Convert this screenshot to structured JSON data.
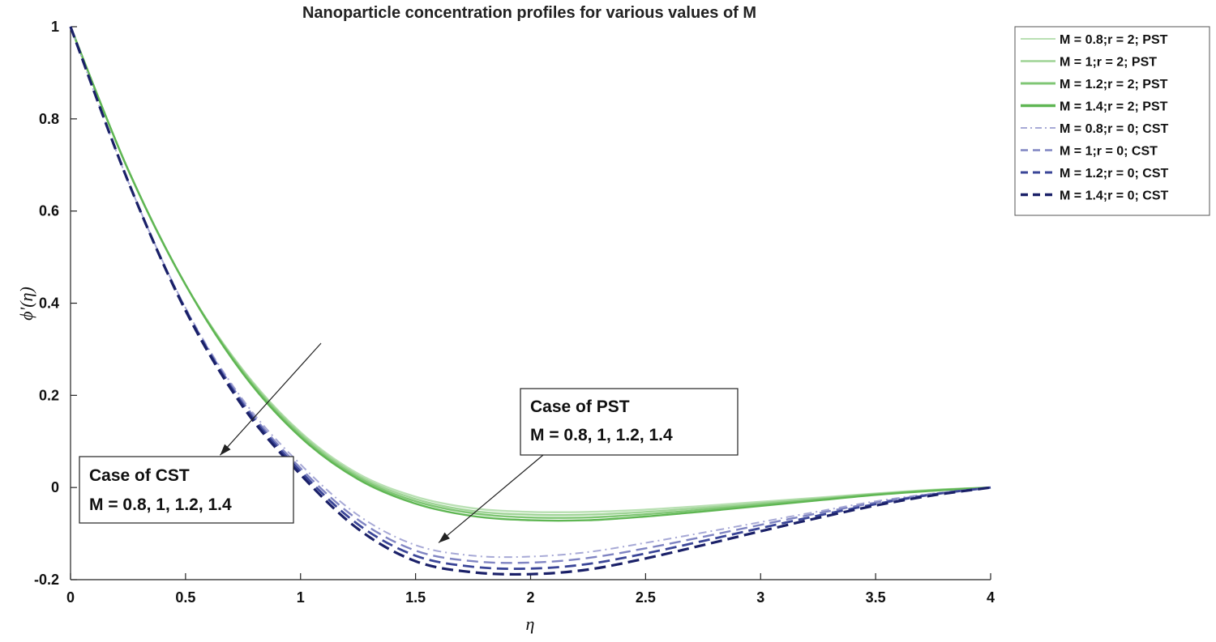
{
  "chart_data": {
    "type": "line",
    "title": "Nanoparticle concentration profiles for various values of M",
    "xlabel": "η",
    "ylabel": "ϕ'(η)",
    "xlim": [
      0,
      4
    ],
    "ylim": [
      -0.2,
      1
    ],
    "xticks": [
      "0",
      "0.5",
      "1",
      "1.5",
      "2",
      "2.5",
      "3",
      "3.5",
      "4"
    ],
    "yticks": [
      "-0.2",
      "0",
      "0.2",
      "0.4",
      "0.6",
      "0.8",
      "1"
    ],
    "grid": false,
    "legend_position": "outside-top-right",
    "series": [
      {
        "name": "M = 0.8;r = 2; PST",
        "color": "#b9e0b3",
        "style": "solid",
        "x": [
          0,
          0.25,
          0.5,
          0.75,
          1.0,
          1.25,
          1.5,
          1.75,
          2.0,
          2.25,
          2.5,
          2.75,
          3.0,
          3.25,
          3.5,
          3.75,
          4.0
        ],
        "y": [
          1.0,
          0.69,
          0.44,
          0.255,
          0.12,
          0.03,
          -0.02,
          -0.045,
          -0.053,
          -0.053,
          -0.048,
          -0.04,
          -0.031,
          -0.022,
          -0.013,
          -0.005,
          0.0
        ]
      },
      {
        "name": "M = 1;r = 2; PST",
        "color": "#9fd496",
        "style": "solid",
        "x": [
          0,
          0.25,
          0.5,
          0.75,
          1.0,
          1.25,
          1.5,
          1.75,
          2.0,
          2.25,
          2.5,
          2.75,
          3.0,
          3.25,
          3.5,
          3.75,
          4.0
        ],
        "y": [
          1.0,
          0.69,
          0.44,
          0.253,
          0.117,
          0.026,
          -0.025,
          -0.051,
          -0.059,
          -0.059,
          -0.053,
          -0.044,
          -0.034,
          -0.024,
          -0.014,
          -0.006,
          0.0
        ]
      },
      {
        "name": "M = 1.2;r = 2; PST",
        "color": "#7fc674",
        "style": "solid",
        "x": [
          0,
          0.25,
          0.5,
          0.75,
          1.0,
          1.25,
          1.5,
          1.75,
          2.0,
          2.25,
          2.5,
          2.75,
          3.0,
          3.25,
          3.5,
          3.75,
          4.0
        ],
        "y": [
          1.0,
          0.69,
          0.44,
          0.25,
          0.113,
          0.022,
          -0.03,
          -0.056,
          -0.065,
          -0.065,
          -0.058,
          -0.048,
          -0.037,
          -0.026,
          -0.015,
          -0.006,
          0.0
        ]
      },
      {
        "name": "M = 1.4;r = 2; PST",
        "color": "#5fb653",
        "style": "solid",
        "x": [
          0,
          0.25,
          0.5,
          0.75,
          1.0,
          1.25,
          1.5,
          1.75,
          2.0,
          2.25,
          2.5,
          2.75,
          3.0,
          3.25,
          3.5,
          3.75,
          4.0
        ],
        "y": [
          1.0,
          0.69,
          0.44,
          0.247,
          0.109,
          0.018,
          -0.035,
          -0.062,
          -0.071,
          -0.071,
          -0.063,
          -0.052,
          -0.04,
          -0.028,
          -0.016,
          -0.007,
          0.0
        ]
      },
      {
        "name": "M = 0.8;r = 0; CST",
        "color": "#a7a9d6",
        "style": "dashdot",
        "x": [
          0,
          0.25,
          0.5,
          0.75,
          1.0,
          1.25,
          1.5,
          1.75,
          2.0,
          2.25,
          2.5,
          2.75,
          3.0,
          3.25,
          3.5,
          3.75,
          4.0
        ],
        "y": [
          1.0,
          0.665,
          0.39,
          0.19,
          0.05,
          -0.06,
          -0.125,
          -0.148,
          -0.15,
          -0.14,
          -0.12,
          -0.098,
          -0.075,
          -0.052,
          -0.03,
          -0.013,
          0.0
        ]
      },
      {
        "name": "M = 1;r = 0; CST",
        "color": "#7f84c2",
        "style": "dashed",
        "x": [
          0,
          0.25,
          0.5,
          0.75,
          1.0,
          1.25,
          1.5,
          1.75,
          2.0,
          2.25,
          2.5,
          2.75,
          3.0,
          3.25,
          3.5,
          3.75,
          4.0
        ],
        "y": [
          1.0,
          0.665,
          0.388,
          0.185,
          0.042,
          -0.07,
          -0.137,
          -0.16,
          -0.163,
          -0.153,
          -0.132,
          -0.107,
          -0.081,
          -0.056,
          -0.033,
          -0.014,
          0.0
        ]
      },
      {
        "name": "M = 1.2;r = 0; CST",
        "color": "#3a4597",
        "style": "dashed",
        "x": [
          0,
          0.25,
          0.5,
          0.75,
          1.0,
          1.25,
          1.5,
          1.75,
          2.0,
          2.25,
          2.5,
          2.75,
          3.0,
          3.25,
          3.5,
          3.75,
          4.0
        ],
        "y": [
          1.0,
          0.665,
          0.386,
          0.18,
          0.035,
          -0.08,
          -0.148,
          -0.172,
          -0.176,
          -0.166,
          -0.143,
          -0.116,
          -0.088,
          -0.061,
          -0.036,
          -0.015,
          0.0
        ]
      },
      {
        "name": "M = 1.4;r = 0; CST",
        "color": "#1a2068",
        "style": "dashed",
        "x": [
          0,
          0.25,
          0.5,
          0.75,
          1.0,
          1.25,
          1.5,
          1.75,
          2.0,
          2.25,
          2.5,
          2.75,
          3.0,
          3.25,
          3.5,
          3.75,
          4.0
        ],
        "y": [
          1.0,
          0.665,
          0.384,
          0.175,
          0.028,
          -0.09,
          -0.16,
          -0.184,
          -0.188,
          -0.178,
          -0.154,
          -0.125,
          -0.095,
          -0.066,
          -0.039,
          -0.017,
          0.0
        ]
      }
    ],
    "annotations": [
      {
        "lines": [
          "Case of PST",
          "M = 0.8, 1, 1.2, 1.4"
        ],
        "arrow_to": [
          1.6,
          -0.12
        ]
      },
      {
        "lines": [
          "Case of CST",
          "M = 0.8, 1, 1.2, 1.4"
        ],
        "arrow_to": [
          0.65,
          0.07
        ]
      }
    ]
  }
}
